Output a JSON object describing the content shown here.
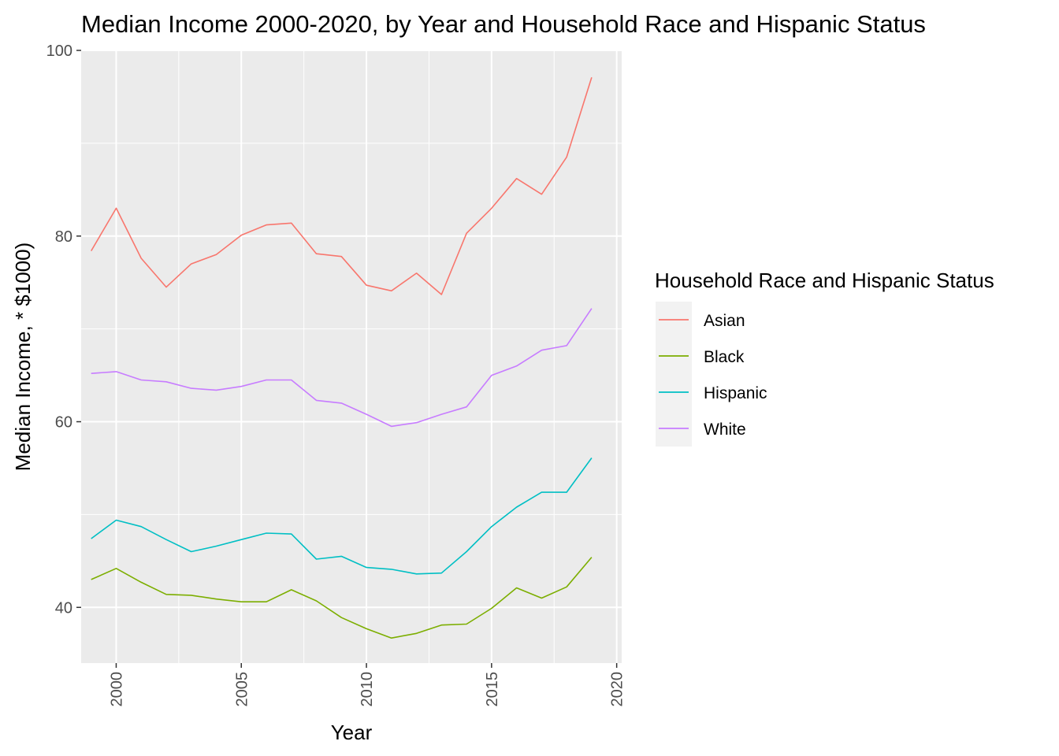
{
  "chart_data": {
    "type": "line",
    "title": "Median Income 2000-2020, by Year and Household Race and Hispanic Status",
    "xlabel": "Year",
    "ylabel": "Median Income, * $1000)",
    "xlim": [
      1998.6,
      2020.2
    ],
    "ylim": [
      34,
      100
    ],
    "xticks": [
      2000,
      2005,
      2010,
      2015,
      2020
    ],
    "yticks": [
      40,
      60,
      80,
      100
    ],
    "grid": true,
    "legend": {
      "title": "Household Race and Hispanic Status",
      "position": "right"
    },
    "x": [
      1999,
      2000,
      2001,
      2002,
      2003,
      2004,
      2005,
      2006,
      2007,
      2008,
      2009,
      2010,
      2011,
      2012,
      2013,
      2014,
      2015,
      2016,
      2017,
      2018,
      2019
    ],
    "series": [
      {
        "name": "Asian",
        "color": "#F8766D",
        "values": [
          78.4,
          83.0,
          77.6,
          74.5,
          77.0,
          78.0,
          80.1,
          81.2,
          81.4,
          78.1,
          77.8,
          74.7,
          74.1,
          76.0,
          73.7,
          80.3,
          83.0,
          86.2,
          84.5,
          88.5,
          97.1
        ]
      },
      {
        "name": "Black",
        "color": "#7CAE00",
        "values": [
          43.0,
          44.2,
          42.7,
          41.4,
          41.3,
          40.9,
          40.6,
          40.6,
          41.9,
          40.7,
          38.9,
          37.7,
          36.7,
          37.2,
          38.1,
          38.2,
          39.9,
          42.1,
          41.0,
          42.2,
          45.4
        ]
      },
      {
        "name": "Hispanic",
        "color": "#00BFC4",
        "values": [
          47.4,
          49.4,
          48.7,
          47.3,
          46.0,
          46.6,
          47.3,
          48.0,
          47.9,
          45.2,
          45.5,
          44.3,
          44.1,
          43.6,
          43.7,
          46.0,
          48.7,
          50.8,
          52.4,
          52.4,
          56.1
        ]
      },
      {
        "name": "White",
        "color": "#C77CFF",
        "values": [
          65.2,
          65.4,
          64.5,
          64.3,
          63.6,
          63.4,
          63.8,
          64.5,
          64.5,
          62.3,
          62.0,
          60.8,
          59.5,
          59.9,
          60.8,
          61.6,
          65.0,
          66.0,
          67.7,
          68.2,
          72.2
        ]
      }
    ]
  }
}
